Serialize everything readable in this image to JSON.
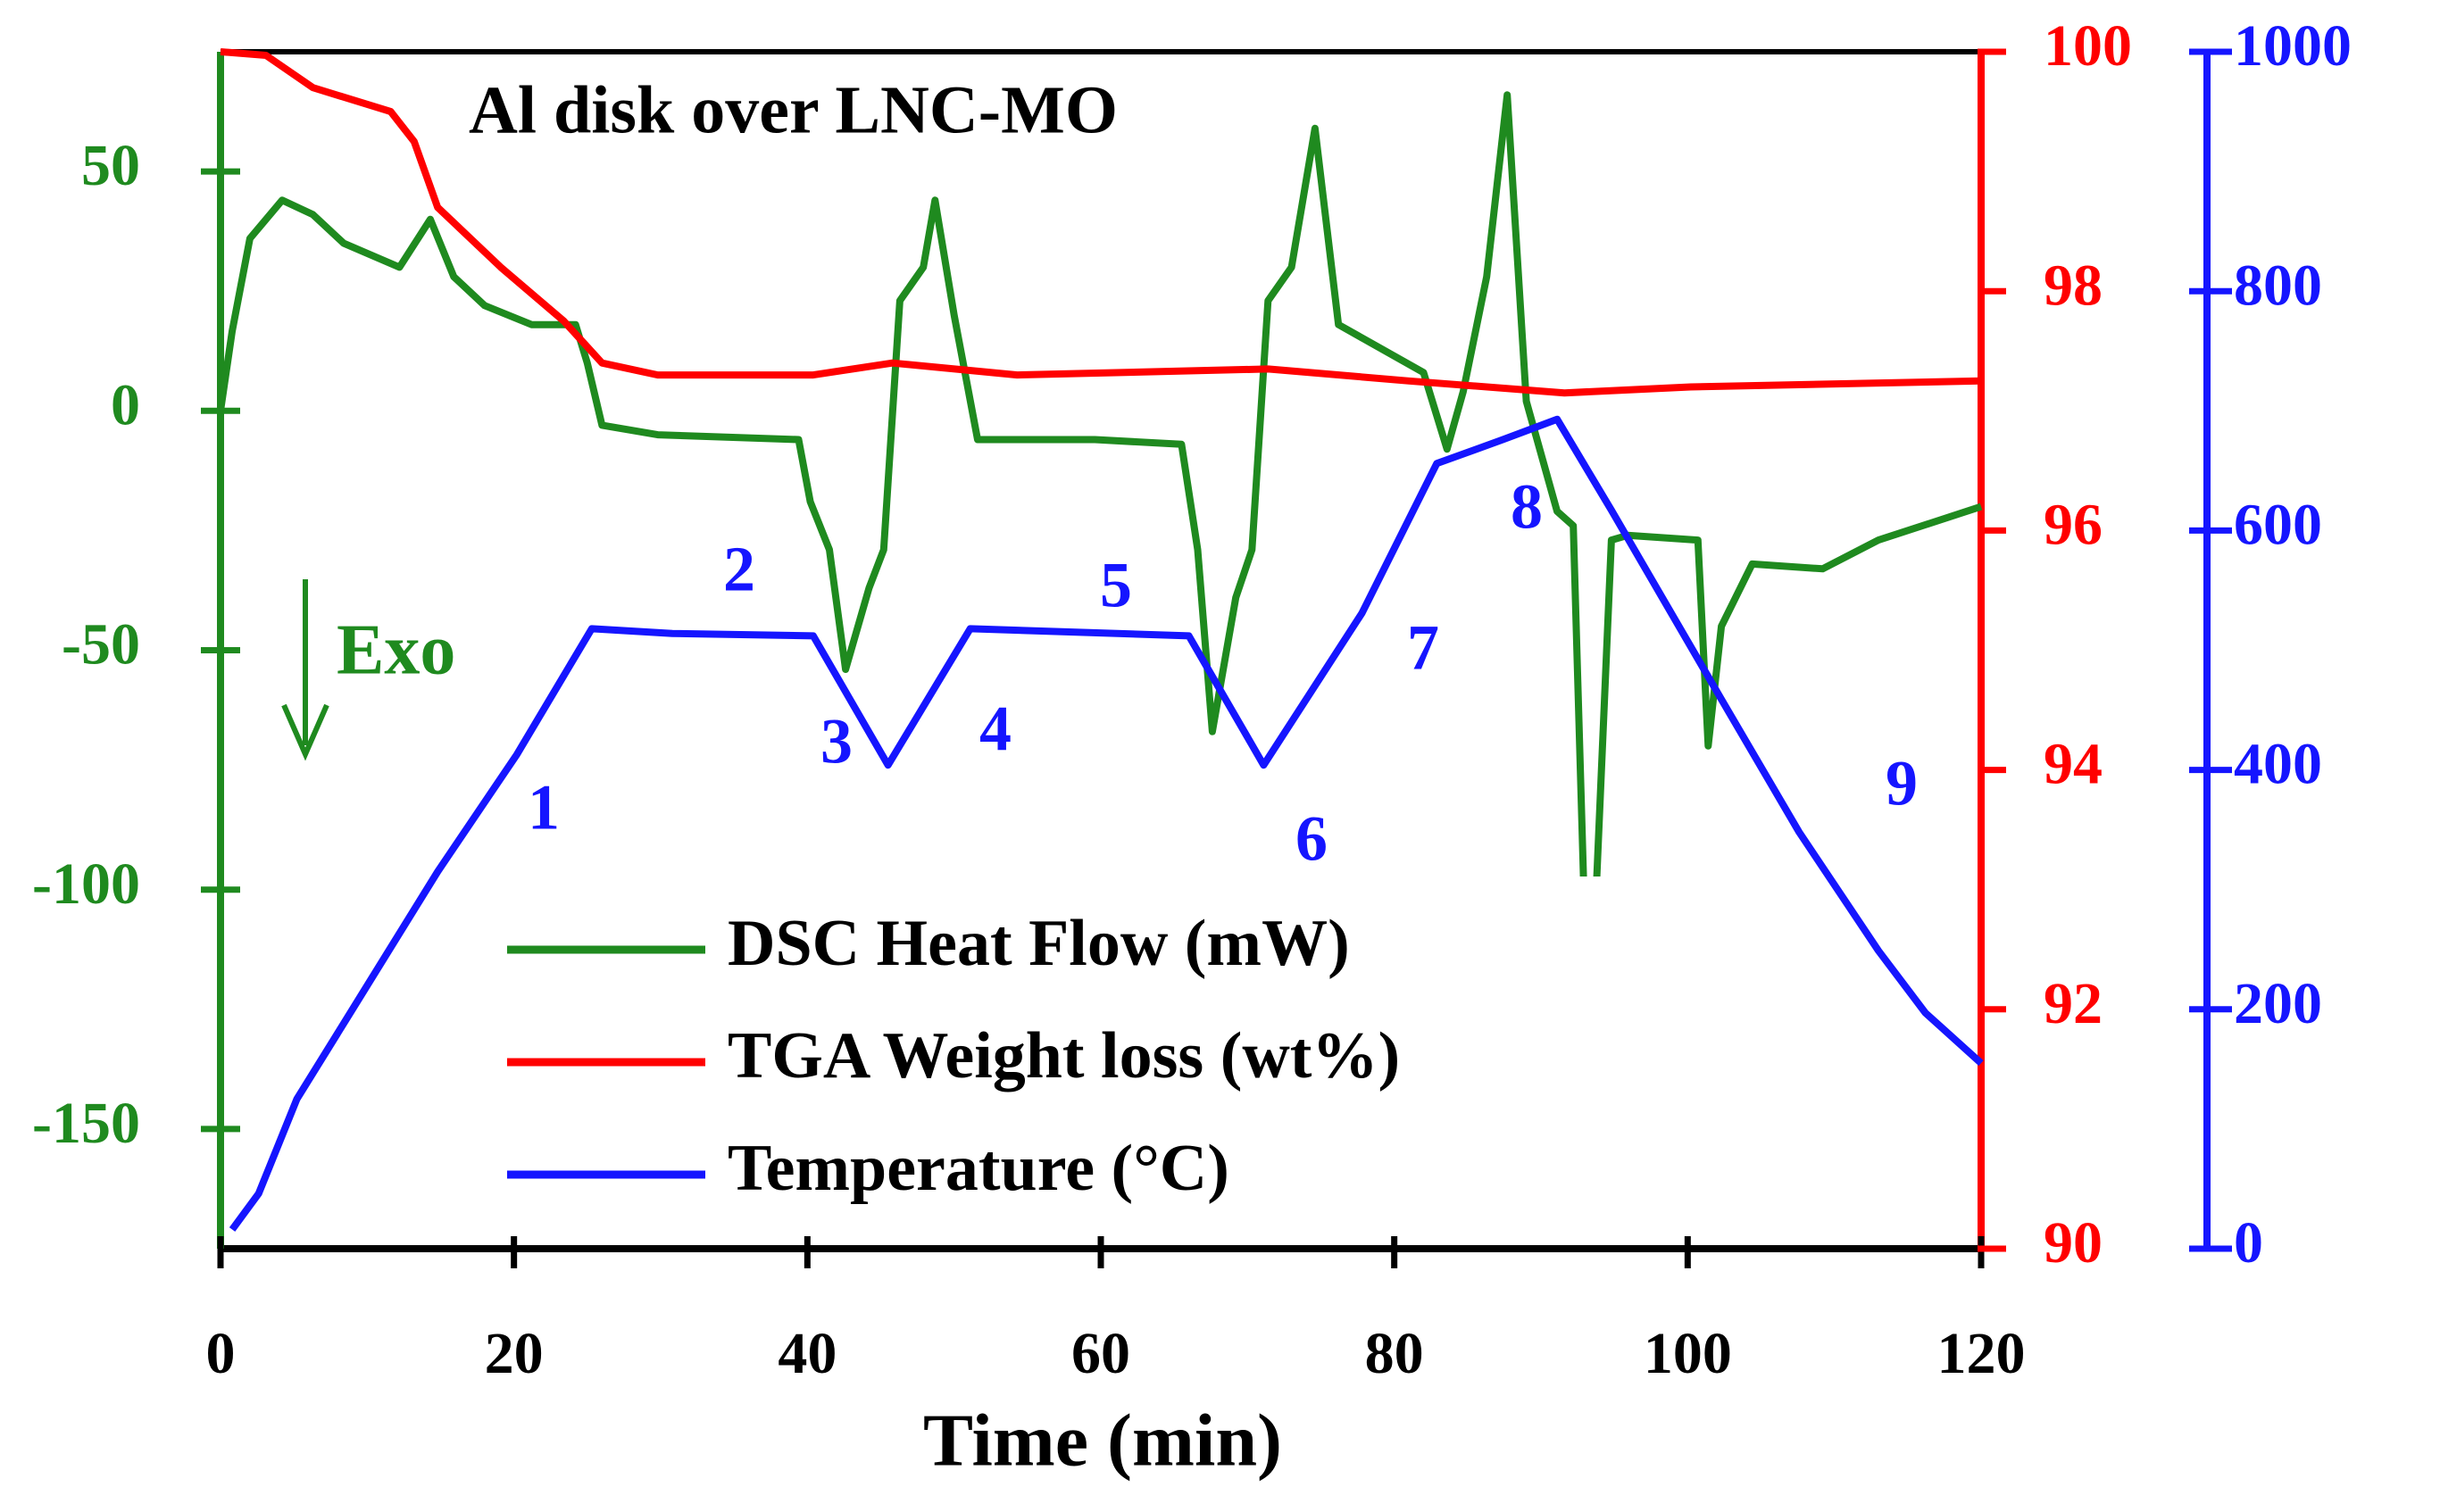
{
  "chart_data": {
    "type": "line",
    "title": "Al disk over LNC-MO",
    "xlabel": "Time (min)",
    "xlim": [
      0,
      120
    ],
    "xticks": [
      0,
      20,
      40,
      60,
      80,
      100,
      120
    ],
    "ylim": [
      -175,
      75
    ],
    "yticks": [
      -150,
      -100,
      -50,
      0,
      50
    ],
    "y2lim": [
      90,
      100
    ],
    "y2ticks": [
      90,
      92,
      94,
      96,
      98,
      100
    ],
    "y3lim": [
      0,
      1000
    ],
    "y3ticks": [
      0,
      200,
      400,
      600,
      800,
      1000
    ],
    "legend": "lower center",
    "annotations": [
      "Exo",
      "1",
      "2",
      "3",
      "4",
      "5",
      "6",
      "7",
      "8",
      "9"
    ],
    "series": [
      {
        "name": "DSC Heat Flow (mW)",
        "color": "#1f8a1f",
        "axis": "y",
        "x": [
          0,
          0.8,
          2,
          4.2,
          6.3,
          8.4,
          12.2,
          14.3,
          15.9,
          18,
          21.2,
          24.2,
          25,
          26,
          29.8,
          39.4,
          40.2,
          41.5,
          42.6,
          44.2,
          45.2,
          46.3,
          47.9,
          48.7,
          50,
          51.6,
          59.6,
          65.5,
          66.6,
          67.6,
          69.2,
          70.3,
          71.4,
          73,
          74.6,
          76.2,
          82,
          83.6,
          84.7,
          86.3,
          87.7,
          89,
          91.1,
          92.2,
          92.9,
          93.8,
          94.8,
          95.9,
          100.7,
          101.4,
          102.3,
          104.4,
          109.2,
          113,
          120
        ],
        "values": [
          0,
          16.7,
          36,
          44,
          41,
          35,
          30,
          40,
          28,
          22,
          18,
          18,
          10,
          -3,
          -5,
          -6,
          -19,
          -29,
          -54,
          -37,
          -29,
          23,
          30,
          44,
          20,
          -6,
          -6,
          -7,
          -29,
          -67,
          -39,
          -29,
          23,
          30,
          59,
          18,
          8,
          -8,
          4,
          28,
          66,
          2,
          -21,
          -24,
          -98,
          -98,
          -27,
          -26,
          -27,
          -70,
          -45,
          -32,
          -33,
          -27,
          -20
        ]
      },
      {
        "name": "TGA Weight loss (wt%)",
        "color": "#ff0000",
        "axis": "y2",
        "x": [
          0,
          3.1,
          6.3,
          11.6,
          13.2,
          14.8,
          19.1,
          23.4,
          26,
          29.8,
          40.4,
          45.8,
          54.3,
          71.4,
          81,
          91.6,
          100.2,
          120
        ],
        "values": [
          100,
          99.97,
          99.7,
          99.5,
          99.25,
          98.7,
          98.2,
          97.75,
          97.4,
          97.3,
          97.3,
          97.4,
          97.3,
          97.35,
          97.25,
          97.15,
          97.2,
          97.25
        ]
      },
      {
        "name": "Temperature (°C)",
        "color": "#1515ff",
        "axis": "y3",
        "x": [
          0.8,
          2.6,
          5.2,
          9.5,
          14.8,
          20.2,
          25.3,
          30.8,
          40.4,
          45.5,
          51.1,
          66,
          71.1,
          77.8,
          82.9,
          87.4,
          91.1,
          94.8,
          102.3,
          107.6,
          113,
          116.2,
          120
        ],
        "values": [
          16,
          46,
          125,
          210,
          315,
          413,
          518,
          514,
          512,
          404,
          518,
          512,
          404,
          531,
          656,
          676,
          693,
          617,
          459,
          348,
          249,
          197,
          155
        ]
      }
    ]
  }
}
